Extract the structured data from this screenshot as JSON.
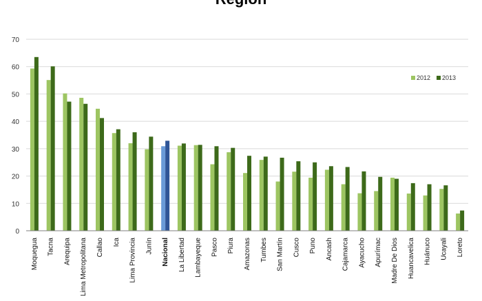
{
  "chart_data": {
    "type": "bar",
    "title": "Región",
    "categories": [
      "Moquegua",
      "Tacna",
      "Arequipa",
      "Lima Metropolitana",
      "Callao",
      "Ica",
      "Lima Provincia",
      "Junín",
      "Nacional",
      "La Libertad",
      "Lambayeque",
      "Pasco",
      "Piura",
      "Amazonas",
      "Tumbes",
      "San Martín",
      "Cusco",
      "Puno",
      "Ancash",
      "Cajamarca",
      "Ayacucho",
      "Apurímac",
      "Madre De Dios",
      "Huancavelica",
      "Huánuco",
      "Ucayali",
      "Loreto"
    ],
    "highlight_category": "Nacional",
    "series": [
      {
        "name": "2012",
        "values": [
          59.3,
          55.1,
          50.2,
          48.6,
          44.6,
          35.7,
          32.0,
          29.8,
          30.9,
          31.1,
          31.3,
          24.3,
          28.7,
          21.1,
          25.9,
          18.0,
          21.6,
          19.4,
          22.3,
          17.0,
          13.7,
          14.5,
          19.4,
          13.6,
          12.9,
          15.3,
          6.3
        ]
      },
      {
        "name": "2013",
        "values": [
          63.5,
          60.1,
          47.2,
          46.4,
          41.2,
          37.1,
          36.0,
          34.4,
          32.9,
          31.9,
          31.4,
          30.9,
          30.3,
          27.4,
          27.1,
          26.7,
          25.4,
          25.0,
          23.6,
          23.3,
          21.7,
          19.7,
          19.0,
          17.4,
          17.0,
          16.6,
          7.4
        ]
      }
    ],
    "ylim": [
      0,
      70
    ],
    "yticks": [
      0,
      10,
      20,
      30,
      40,
      50,
      60,
      70
    ],
    "grid": true,
    "legend": "top-right",
    "colors": {
      "2012": "#9dc562",
      "2013": "#3d6a1a",
      "nacional_2012": "#6a9bd8",
      "nacional_2013": "#2f5597",
      "grid": "#d9d9d9",
      "axis": "#7f7f7f"
    }
  }
}
